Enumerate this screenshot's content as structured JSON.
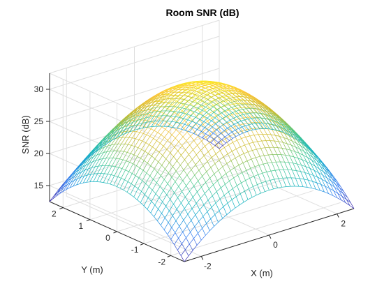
{
  "chart_data": {
    "type": "surface",
    "title": "Room SNR (dB)",
    "xlabel": "X (m)",
    "ylabel": "Y (m)",
    "zlabel": "SNR (dB)",
    "xlim": [
      -2.5,
      2.5
    ],
    "ylim": [
      -2.5,
      2.5
    ],
    "zlim": [
      12.5,
      32.5
    ],
    "x_ticks": [
      "-2",
      "0",
      "2"
    ],
    "y_ticks": [
      "-2",
      "-1",
      "0",
      "1",
      "2"
    ],
    "z_ticks": [
      "15",
      "20",
      "25",
      "30"
    ],
    "grid": true,
    "colormap": "parula",
    "colors": [
      "#3e26a8",
      "#2c79f2",
      "#13b2c6",
      "#4ac98b",
      "#c6bc30",
      "#fdc33d",
      "#f9fb15"
    ],
    "mesh_resolution": 40,
    "peak_snr": 31.0,
    "corner_snr": 12.5,
    "edge_mid_snr": 19.5,
    "legend": "none"
  }
}
